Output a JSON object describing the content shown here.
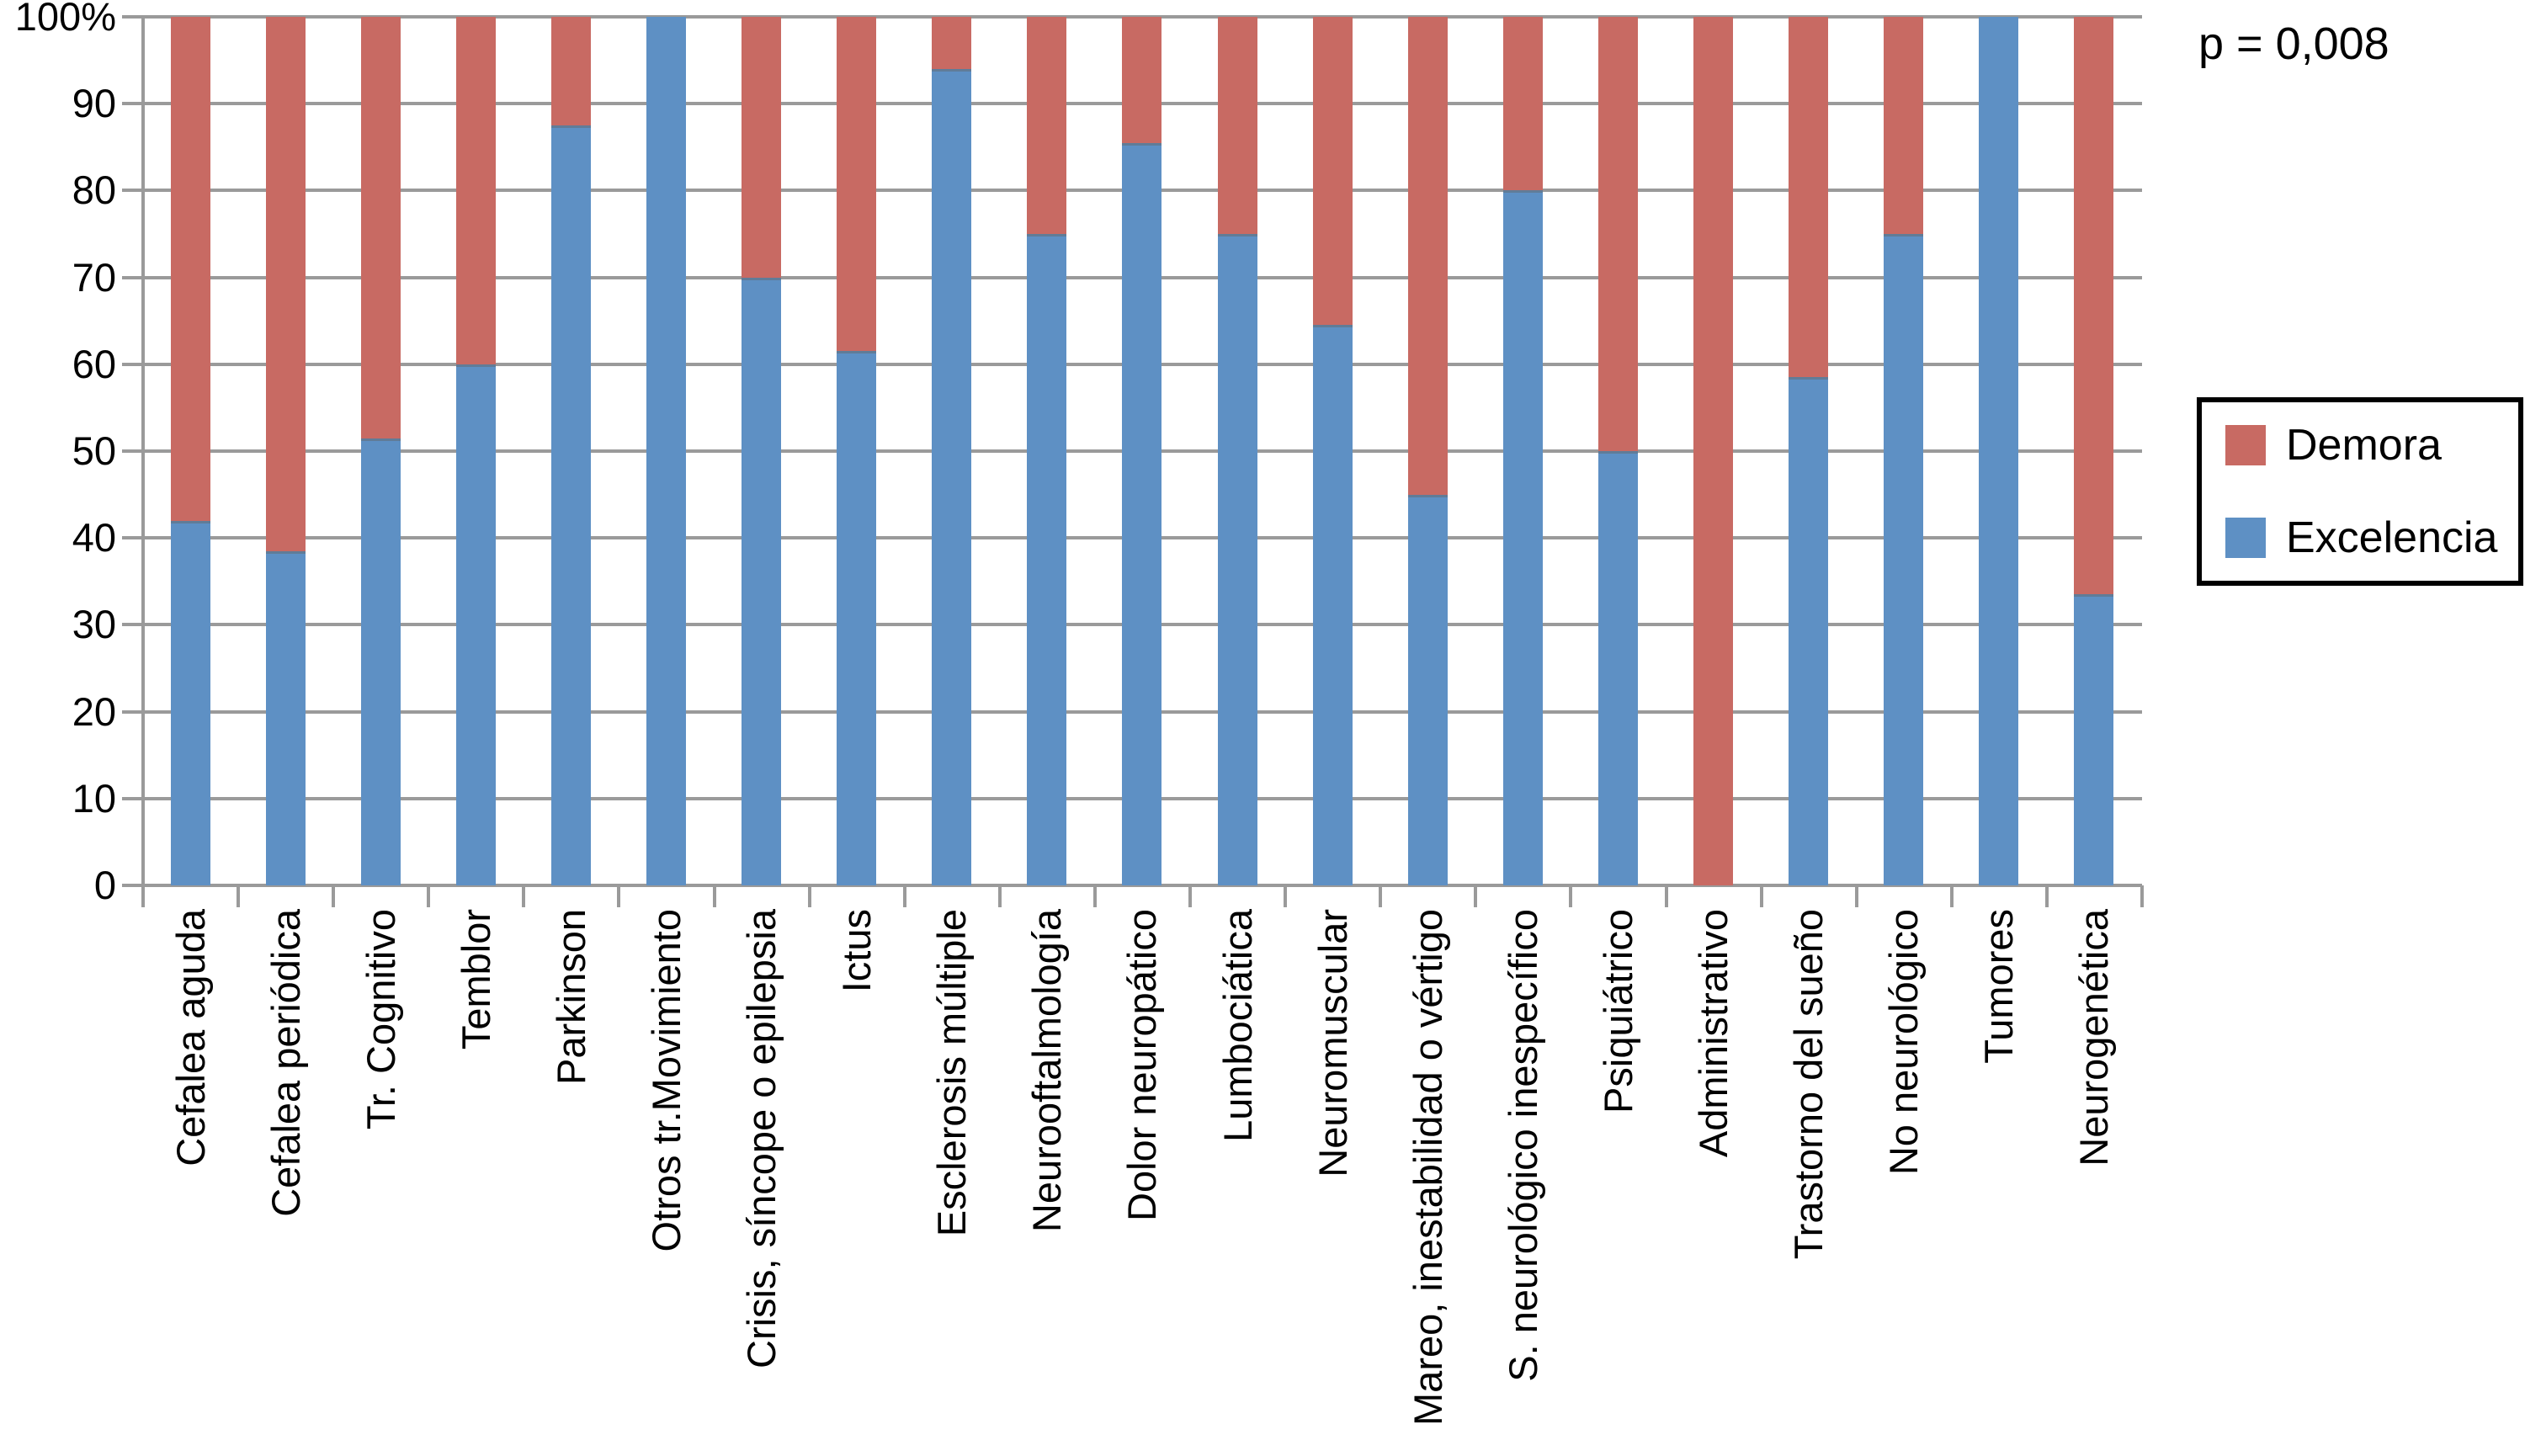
{
  "chart_data": {
    "type": "bar",
    "stacked": true,
    "percent_stacked": true,
    "title": "",
    "xlabel": "",
    "ylabel": "",
    "ylim": [
      0,
      100
    ],
    "grid": true,
    "legend_position": "right",
    "annotation": "p = 0,008",
    "axis_color": "#9a9a9a",
    "categories": [
      "Cefalea aguda",
      "Cefalea periódica",
      "Tr. Cognitivo",
      "Temblor",
      "Parkinson",
      "Otros tr.Movimiento",
      "Crisis, síncope o epilepsia",
      "Ictus",
      "Esclerosis múltiple",
      "Neurooftalmología",
      "Dolor neuropático",
      "Lumbociática",
      "Neuromuscular",
      "Mareo, inestabilidad o vértigo",
      "S. neurológico inespecífico",
      "Psiquiátrico",
      "Administrativo",
      "Trastorno del sueño",
      "No neurológico",
      "Tumores",
      "Neurogenética"
    ],
    "series": [
      {
        "name": "Demora",
        "color": "#c86a63",
        "values": [
          58,
          61.5,
          48.5,
          40,
          12.5,
          0,
          30,
          38.5,
          6,
          25,
          14.5,
          25,
          35.5,
          55,
          20,
          50,
          100,
          41.5,
          25,
          0,
          66.5
        ]
      },
      {
        "name": "Excelencia",
        "color": "#5e90c4",
        "values": [
          42,
          38.5,
          51.5,
          60,
          87.5,
          100,
          70,
          61.5,
          94,
          75,
          85.5,
          75,
          64.5,
          45,
          80,
          50,
          0,
          58.5,
          75,
          100,
          33.5
        ]
      }
    ],
    "yticks": [
      {
        "label": "100%",
        "value": 100
      },
      {
        "label": "90",
        "value": 90
      },
      {
        "label": "80",
        "value": 80
      },
      {
        "label": "70",
        "value": 70
      },
      {
        "label": "60",
        "value": 60
      },
      {
        "label": "50",
        "value": 50
      },
      {
        "label": "40",
        "value": 40
      },
      {
        "label": "30",
        "value": 30
      },
      {
        "label": "20",
        "value": 20
      },
      {
        "label": "10",
        "value": 10
      },
      {
        "label": "0",
        "value": 0
      }
    ]
  }
}
